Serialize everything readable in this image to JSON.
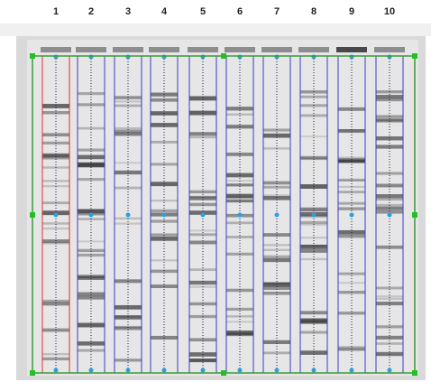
{
  "lanes": [
    {
      "label": "1"
    },
    {
      "label": "2"
    },
    {
      "label": "3"
    },
    {
      "label": "4"
    },
    {
      "label": "5"
    },
    {
      "label": "6"
    },
    {
      "label": "7"
    },
    {
      "label": "8"
    },
    {
      "label": "9"
    },
    {
      "label": "10"
    }
  ]
}
